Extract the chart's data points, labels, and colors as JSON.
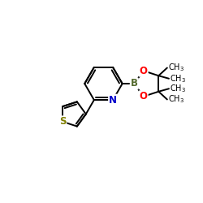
{
  "background_color": "#ffffff",
  "bond_color": "#000000",
  "N_color": "#0000cc",
  "O_color": "#ff0000",
  "B_color": "#556b2f",
  "S_color": "#808000",
  "figsize": [
    2.5,
    2.5
  ],
  "dpi": 100,
  "xlim": [
    0,
    10
  ],
  "ylim": [
    0,
    10
  ]
}
